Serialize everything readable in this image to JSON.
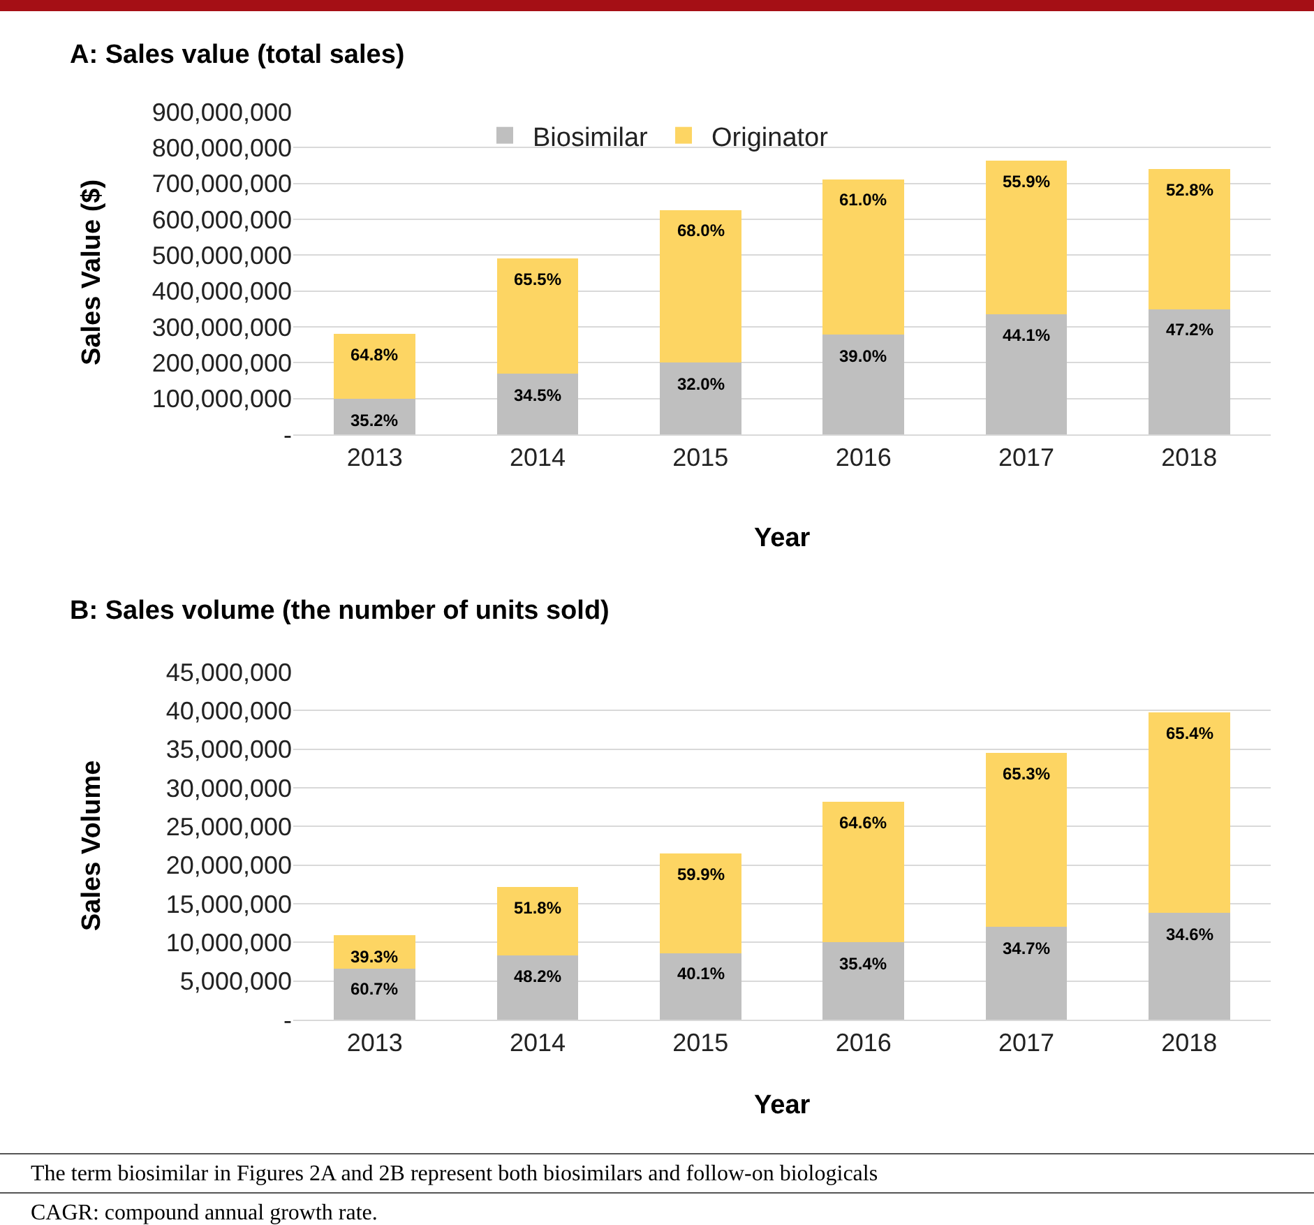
{
  "chart_data": [
    {
      "type": "bar",
      "title": "A: Sales value (total sales)",
      "xlabel": "Year",
      "ylabel": "Sales Value ($)",
      "stacked": true,
      "grid": "y",
      "legend": "top",
      "categories": [
        "2013",
        "2014",
        "2015",
        "2016",
        "2017",
        "2018"
      ],
      "ylim": [
        0,
        900000000
      ],
      "yticks": [
        {
          "value": 0,
          "label": "-"
        },
        {
          "value": 100000000,
          "label": "100,000,000"
        },
        {
          "value": 200000000,
          "label": "200,000,000"
        },
        {
          "value": 300000000,
          "label": "300,000,000"
        },
        {
          "value": 400000000,
          "label": "400,000,000"
        },
        {
          "value": 500000000,
          "label": "500,000,000"
        },
        {
          "value": 600000000,
          "label": "600,000,000"
        },
        {
          "value": 700000000,
          "label": "700,000,000"
        },
        {
          "value": 800000000,
          "label": "800,000,000"
        },
        {
          "value": 900000000,
          "label": "900,000,000"
        }
      ],
      "series": [
        {
          "name": "Biosimilar",
          "color": "#bfbfbf",
          "values": [
            99000000,
            169000000,
            200000000,
            278000000,
            336000000,
            349000000
          ]
        },
        {
          "name": "Originator",
          "color": "#fdd563",
          "values": [
            181000000,
            321000000,
            426000000,
            434000000,
            427000000,
            391000000
          ]
        }
      ],
      "annotations": [
        {
          "text": "35.2%",
          "x": "2013",
          "y": 99000000
        },
        {
          "text": "34.5%",
          "x": "2014",
          "y": 169000000
        },
        {
          "text": "32.0%",
          "x": "2015",
          "y": 200000000
        },
        {
          "text": "39.0%",
          "x": "2016",
          "y": 278000000
        },
        {
          "text": "44.1%",
          "x": "2017",
          "y": 336000000
        },
        {
          "text": "47.2%",
          "x": "2018",
          "y": 349000000
        },
        {
          "text": "64.8%",
          "x": "2013",
          "y": 280000000
        },
        {
          "text": "65.5%",
          "x": "2014",
          "y": 490000000
        },
        {
          "text": "68.0%",
          "x": "2015",
          "y": 626000000
        },
        {
          "text": "61.0%",
          "x": "2016",
          "y": 712000000
        },
        {
          "text": "55.9%",
          "x": "2017",
          "y": 763000000
        },
        {
          "text": "52.8%",
          "x": "2018",
          "y": 740000000
        }
      ]
    },
    {
      "type": "bar",
      "title": "B: Sales volume (the number of units sold)",
      "xlabel": "Year",
      "ylabel": "Sales Volume",
      "stacked": true,
      "grid": "y",
      "legend": false,
      "categories": [
        "2013",
        "2014",
        "2015",
        "2016",
        "2017",
        "2018"
      ],
      "ylim": [
        0,
        45000000
      ],
      "yticks": [
        {
          "value": 0,
          "label": "-"
        },
        {
          "value": 5000000,
          "label": "5,000,000"
        },
        {
          "value": 10000000,
          "label": "10,000,000"
        },
        {
          "value": 15000000,
          "label": "15,000,000"
        },
        {
          "value": 20000000,
          "label": "20,000,000"
        },
        {
          "value": 25000000,
          "label": "25,000,000"
        },
        {
          "value": 30000000,
          "label": "30,000,000"
        },
        {
          "value": 35000000,
          "label": "35,000,000"
        },
        {
          "value": 40000000,
          "label": "40,000,000"
        },
        {
          "value": 45000000,
          "label": "45,000,000"
        }
      ],
      "series": [
        {
          "color": "#bfbfbf",
          "values": [
            6600000,
            8300000,
            8600000,
            10000000,
            12000000,
            13800000
          ]
        },
        {
          "color": "#fdd563",
          "values": [
            4300000,
            8900000,
            12900000,
            18200000,
            22500000,
            26000000
          ]
        }
      ],
      "annotations": [
        {
          "text": "60.7%",
          "x": "2013",
          "y": 6600000
        },
        {
          "text": "48.2%",
          "x": "2014",
          "y": 8300000
        },
        {
          "text": "40.1%",
          "x": "2015",
          "y": 8600000
        },
        {
          "text": "35.4%",
          "x": "2016",
          "y": 10000000
        },
        {
          "text": "34.7%",
          "x": "2017",
          "y": 12000000
        },
        {
          "text": "34.6%",
          "x": "2018",
          "y": 13800000
        },
        {
          "text": "39.3%",
          "x": "2013",
          "y": 10900000
        },
        {
          "text": "51.8%",
          "x": "2014",
          "y": 17200000
        },
        {
          "text": "59.9%",
          "x": "2015",
          "y": 21500000
        },
        {
          "text": "64.6%",
          "x": "2016",
          "y": 28200000
        },
        {
          "text": "65.3%",
          "x": "2017",
          "y": 34500000
        },
        {
          "text": "65.4%",
          "x": "2018",
          "y": 39800000
        },
        "The term biosimilar in Figures 2A and 2B represent both biosimilars and follow-on biologicals",
        "CAGR: compound annual growth rate."
      ]
    }
  ]
}
